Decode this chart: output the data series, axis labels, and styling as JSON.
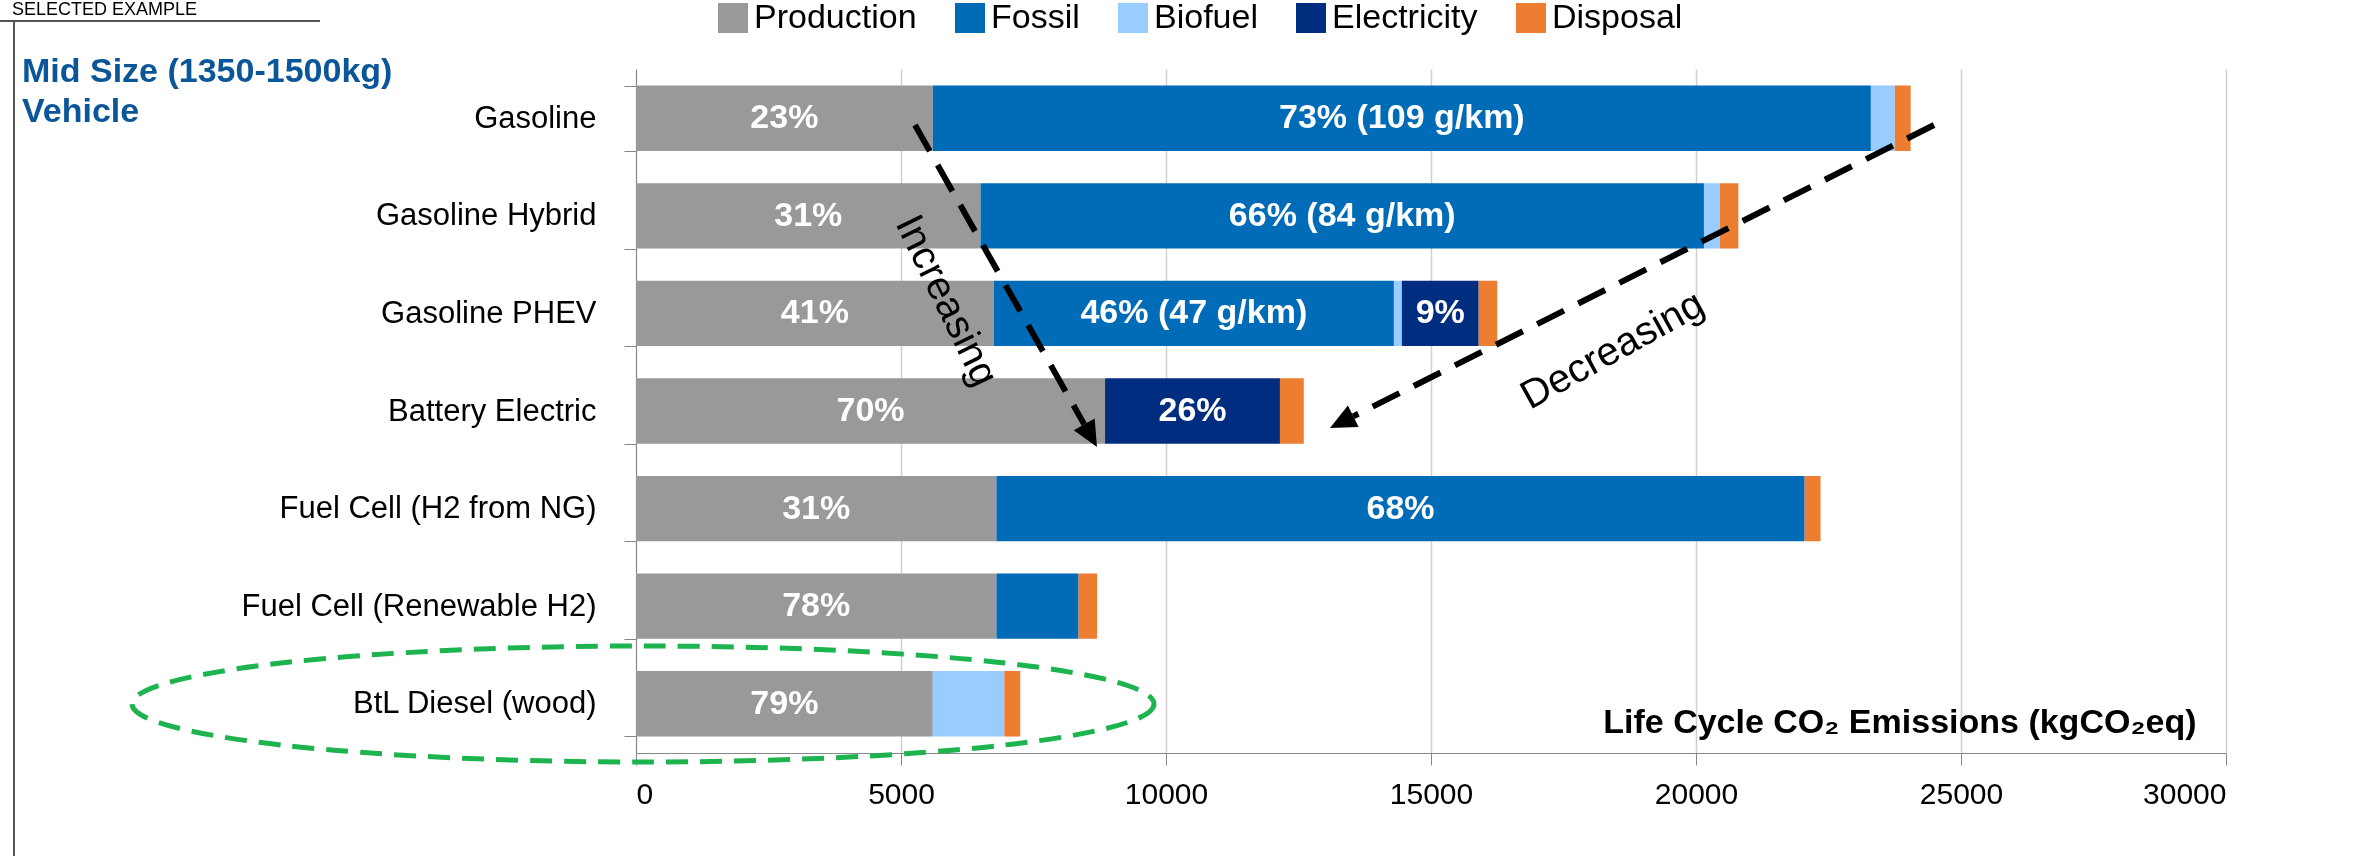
{
  "chart_data": {
    "type": "bar",
    "orientation": "horizontal",
    "stacked": true,
    "title": "Mid Size (1350-1500kg) Vehicle",
    "xlabel": "Life Cycle CO₂ Emissions (kgCO₂eq)",
    "categories": [
      "Gasoline",
      "Gasoline Hybrid",
      "Gasoline PHEV",
      "Battery Electric",
      "Fuel Cell (H2 from NG)",
      "Fuel Cell (Renewable H2)",
      "BtL Diesel (wood)"
    ],
    "series": [
      {
        "name": "Production",
        "color": "#999999",
        "values": [
          5600,
          6500,
          6750,
          8850,
          6800,
          6800,
          5600
        ]
      },
      {
        "name": "Fossil",
        "color": "#006bb6",
        "values": [
          17700,
          13650,
          7550,
          null,
          15250,
          1550,
          null
        ]
      },
      {
        "name": "Biofuel",
        "color": "#99ccff",
        "values": [
          450,
          300,
          150,
          null,
          null,
          null,
          1350
        ]
      },
      {
        "name": "Electricity",
        "color": "#002d80",
        "values": [
          null,
          null,
          1450,
          3300,
          null,
          null,
          null
        ]
      },
      {
        "name": "Disposal",
        "color": "#ed7d31",
        "values": [
          300,
          350,
          350,
          450,
          300,
          350,
          300
        ]
      }
    ],
    "xlim": [
      0,
      30000
    ],
    "xticks": [
      0,
      5000,
      10000,
      15000,
      20000,
      25000,
      30000
    ],
    "grid": "x",
    "legend": "top",
    "annotations": [
      "SELECTED EXAMPLE",
      "Increasing",
      "Decreasing",
      "23%",
      "73% (109 g/km)",
      "31%",
      "66% (84 g/km)",
      "41%",
      "46% (47 g/km)",
      "9%",
      "70%",
      "26%",
      "31%",
      "68%",
      "78%",
      "79%"
    ]
  }
}
